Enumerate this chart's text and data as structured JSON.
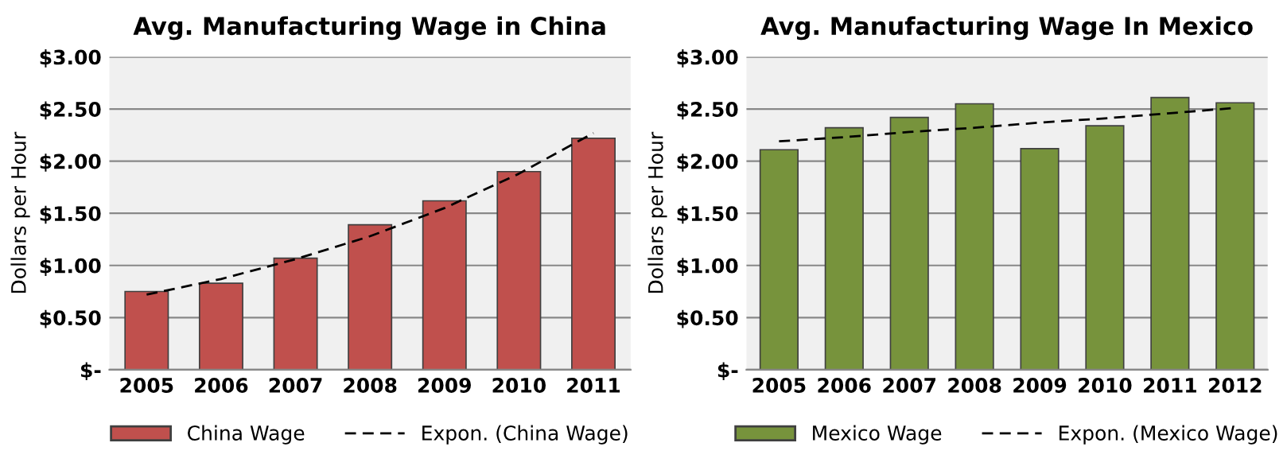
{
  "chart_data": [
    {
      "type": "bar",
      "title": "Avg. Manufacturing Wage in China",
      "ylabel": "Dollars per Hour",
      "categories": [
        "2005",
        "2006",
        "2007",
        "2008",
        "2009",
        "2010",
        "2011"
      ],
      "series": [
        {
          "name": "China Wage",
          "color": "#c0504d",
          "values": [
            0.75,
            0.83,
            1.07,
            1.39,
            1.62,
            1.9,
            2.22
          ]
        },
        {
          "name": "Expon. (China Wage)",
          "type": "line",
          "line_style": "dashed",
          "color": "#000000",
          "values": [
            0.72,
            0.87,
            1.06,
            1.28,
            1.55,
            1.88,
            2.27
          ]
        }
      ],
      "ylim": [
        0,
        3
      ],
      "yticks": [
        {
          "value": 0,
          "label": "$-"
        },
        {
          "value": 0.5,
          "label": "$0.50"
        },
        {
          "value": 1,
          "label": "$1.00"
        },
        {
          "value": 1.5,
          "label": "$1.50"
        },
        {
          "value": 2,
          "label": "$2.00"
        },
        {
          "value": 2.5,
          "label": "$2.50"
        },
        {
          "value": 3,
          "label": "$3.00"
        }
      ],
      "grid": "y",
      "legend": "bottom"
    },
    {
      "type": "bar",
      "title": "Avg. Manufacturing Wage In Mexico",
      "ylabel": "Dollars per Hour",
      "categories": [
        "2005",
        "2006",
        "2007",
        "2008",
        "2009",
        "2010",
        "2011",
        "2012"
      ],
      "series": [
        {
          "name": "Mexico Wage",
          "color": "#77933c",
          "values": [
            2.11,
            2.32,
            2.42,
            2.55,
            2.12,
            2.34,
            2.61,
            2.56
          ]
        },
        {
          "name": "Expon. (Mexico Wage)",
          "type": "line",
          "line_style": "dashed",
          "color": "#000000",
          "values": [
            2.19,
            2.23,
            2.28,
            2.32,
            2.37,
            2.41,
            2.46,
            2.51
          ]
        }
      ],
      "ylim": [
        0,
        3
      ],
      "yticks": [
        {
          "value": 0,
          "label": "$-"
        },
        {
          "value": 0.5,
          "label": "$0.50"
        },
        {
          "value": 1,
          "label": "$1.00"
        },
        {
          "value": 1.5,
          "label": "$1.50"
        },
        {
          "value": 2,
          "label": "$2.00"
        },
        {
          "value": 2.5,
          "label": "$2.50"
        },
        {
          "value": 3,
          "label": "$3.00"
        }
      ],
      "grid": "y",
      "legend": "bottom"
    }
  ]
}
